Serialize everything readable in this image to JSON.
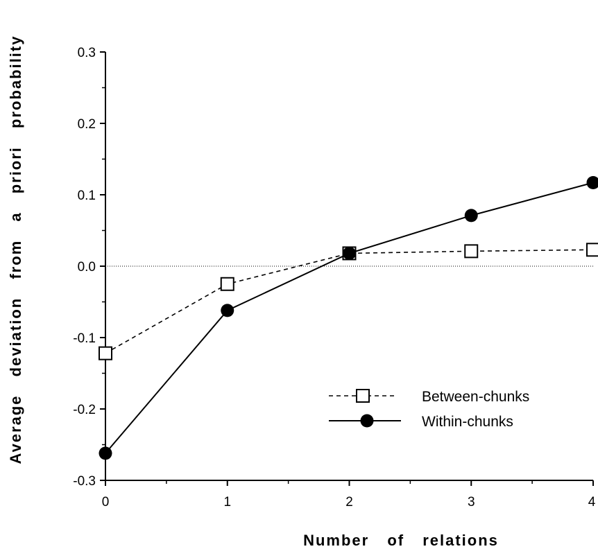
{
  "chart_data": {
    "type": "line",
    "title": "",
    "xlabel": "Number of relations",
    "ylabel": "Average deviation from a priori probability",
    "x": [
      0,
      1,
      2,
      3,
      4
    ],
    "x_ticks": [
      "0",
      "1",
      "2",
      "3",
      "4"
    ],
    "y_ticks": [
      "-0.3",
      "-0.2",
      "-0.1",
      "0.0",
      "0.1",
      "0.2",
      "0.3"
    ],
    "xlim": [
      0,
      4
    ],
    "ylim": [
      -0.3,
      0.3
    ],
    "reference_line": 0.0,
    "grid": false,
    "legend_position": "lower-right",
    "series": [
      {
        "name": "Between-chunks",
        "values": [
          -0.122,
          -0.025,
          0.018,
          0.021,
          0.023
        ],
        "line_style": "dashed",
        "marker": "open-square",
        "color": "#000000"
      },
      {
        "name": "Within-chunks",
        "values": [
          -0.262,
          -0.062,
          0.018,
          0.071,
          0.117
        ],
        "line_style": "solid",
        "marker": "filled-circle",
        "color": "#000000"
      }
    ]
  }
}
